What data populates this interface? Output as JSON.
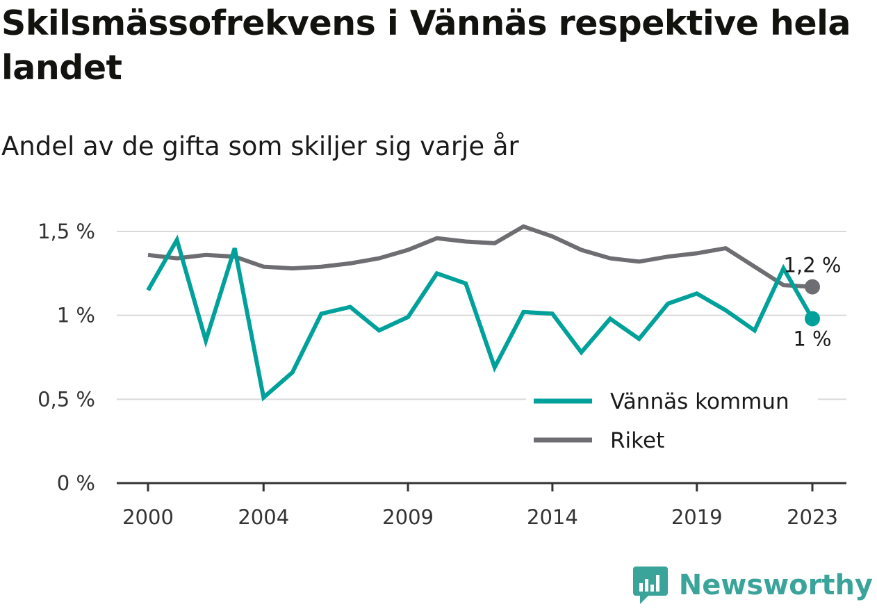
{
  "title": "Skilsmässofrekvens i Vännäs respektive hela landet",
  "subtitle": "Andel av de gifta som skiljer sig varje år",
  "brand": "Newsworthy",
  "colors": {
    "vannas": "#00a19a",
    "riket": "#6e6d72",
    "grid": "#d9d9d9",
    "axis": "#333333"
  },
  "chart_data": {
    "type": "line",
    "x": [
      2000,
      2001,
      2002,
      2003,
      2004,
      2005,
      2006,
      2007,
      2008,
      2009,
      2010,
      2011,
      2012,
      2013,
      2014,
      2015,
      2016,
      2017,
      2018,
      2019,
      2020,
      2021,
      2022,
      2023
    ],
    "x_ticks": [
      2000,
      2004,
      2009,
      2014,
      2019,
      2023
    ],
    "x_tick_labels": [
      "2000",
      "2004",
      "2009",
      "2014",
      "2019",
      "2023"
    ],
    "ylim": [
      0,
      1.5
    ],
    "y_ticks": [
      0,
      0.5,
      1,
      1.5
    ],
    "y_tick_labels": [
      "0 %",
      "0,5 %",
      "1 %",
      "1,5 %"
    ],
    "grid": true,
    "legend_position": "bottom-right",
    "series": [
      {
        "name": "Vännäs kommun",
        "color": "#00a19a",
        "values": [
          1.15,
          1.45,
          0.85,
          1.4,
          0.51,
          0.66,
          1.01,
          1.05,
          0.91,
          0.99,
          1.25,
          1.19,
          0.69,
          1.02,
          1.01,
          0.78,
          0.98,
          0.86,
          1.07,
          1.13,
          1.03,
          0.91,
          1.28,
          0.98
        ],
        "end_label": "1 %"
      },
      {
        "name": "Riket",
        "color": "#6e6d72",
        "values": [
          1.36,
          1.34,
          1.36,
          1.35,
          1.29,
          1.28,
          1.29,
          1.31,
          1.34,
          1.39,
          1.46,
          1.44,
          1.43,
          1.53,
          1.47,
          1.39,
          1.34,
          1.32,
          1.35,
          1.37,
          1.4,
          1.29,
          1.18,
          1.17
        ],
        "end_label": "1,2 %"
      }
    ]
  }
}
